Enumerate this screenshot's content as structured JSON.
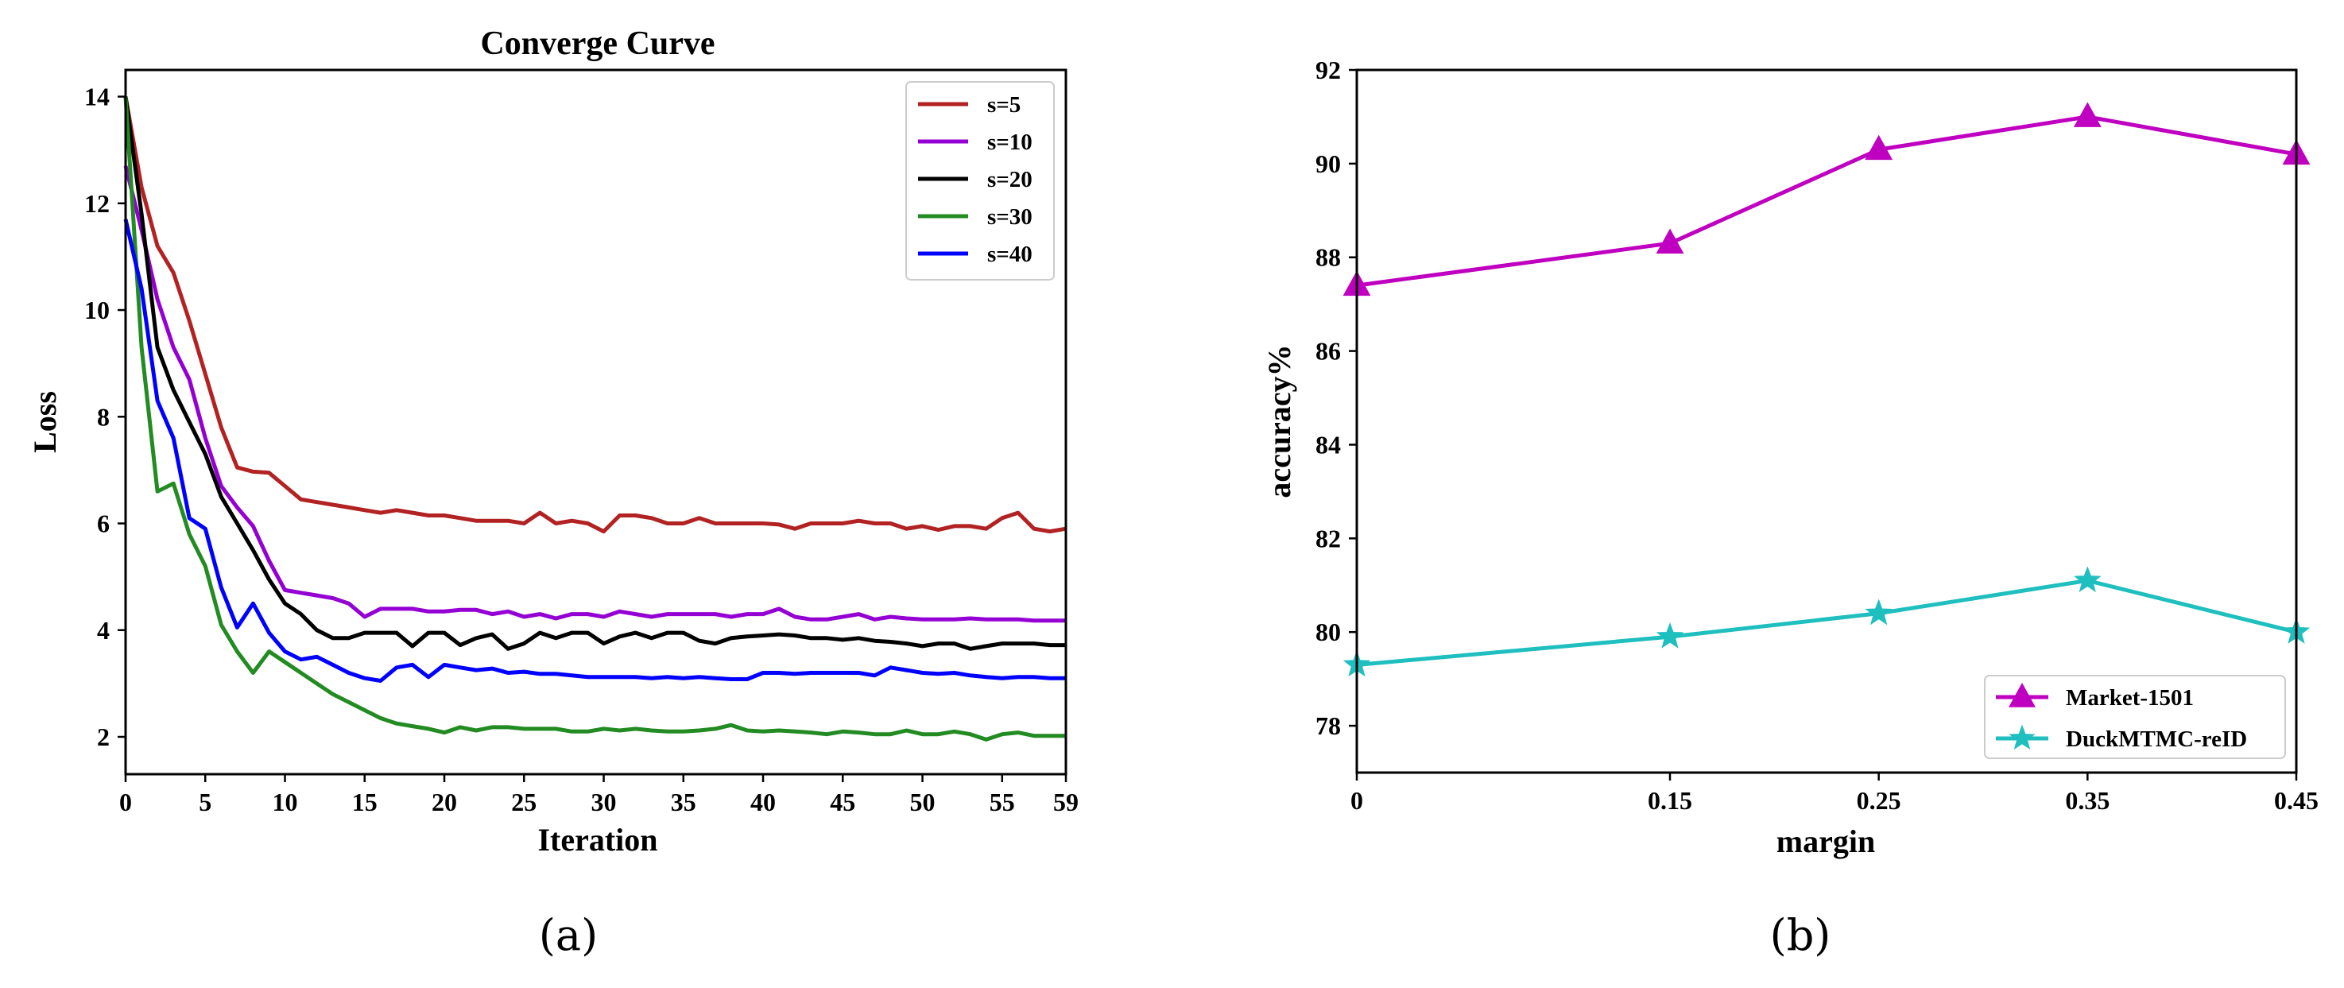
{
  "chart_data": [
    {
      "type": "line",
      "title": "Converge Curve",
      "xlabel": "Iteration",
      "ylabel": "Loss",
      "caption": "(a)",
      "xlim": [
        0,
        59
      ],
      "ylim": [
        1.3,
        14.5
      ],
      "xticks": [
        0,
        5,
        10,
        15,
        20,
        25,
        30,
        35,
        40,
        45,
        50,
        55,
        59
      ],
      "yticks": [
        2,
        4,
        6,
        8,
        10,
        12,
        14
      ],
      "legend_position": "top-right",
      "series": [
        {
          "name": "s=5",
          "color": "#b22222",
          "values": [
            14.0,
            12.3,
            11.2,
            10.7,
            9.8,
            8.8,
            7.8,
            7.05,
            6.97,
            6.95,
            6.7,
            6.45,
            6.4,
            6.35,
            6.3,
            6.25,
            6.2,
            6.25,
            6.2,
            6.15,
            6.15,
            6.1,
            6.05,
            6.05,
            6.05,
            6.0,
            6.2,
            6.0,
            6.05,
            6.0,
            5.85,
            6.15,
            6.15,
            6.1,
            6.0,
            6.0,
            6.1,
            6.0,
            6.0,
            6.0,
            6.0,
            5.98,
            5.9,
            6.0,
            6.0,
            6.0,
            6.05,
            6.0,
            6.0,
            5.9,
            5.95,
            5.88,
            5.95,
            5.95,
            5.9,
            6.1,
            6.2,
            5.9,
            5.85,
            5.9
          ]
        },
        {
          "name": "s=10",
          "color": "#9400d3",
          "values": [
            12.7,
            11.5,
            10.2,
            9.3,
            8.7,
            7.6,
            6.7,
            6.3,
            5.95,
            5.3,
            4.75,
            4.7,
            4.65,
            4.6,
            4.5,
            4.25,
            4.4,
            4.4,
            4.4,
            4.35,
            4.35,
            4.38,
            4.38,
            4.3,
            4.35,
            4.25,
            4.3,
            4.22,
            4.3,
            4.3,
            4.25,
            4.35,
            4.3,
            4.25,
            4.3,
            4.3,
            4.3,
            4.3,
            4.25,
            4.3,
            4.3,
            4.4,
            4.25,
            4.2,
            4.2,
            4.25,
            4.3,
            4.2,
            4.25,
            4.22,
            4.2,
            4.2,
            4.2,
            4.22,
            4.2,
            4.2,
            4.2,
            4.18,
            4.18,
            4.18
          ]
        },
        {
          "name": "s=20",
          "color": "#000000",
          "values": [
            14.0,
            11.8,
            9.3,
            8.5,
            7.9,
            7.3,
            6.5,
            6.0,
            5.5,
            4.95,
            4.5,
            4.3,
            4.0,
            3.85,
            3.85,
            3.95,
            3.95,
            3.95,
            3.7,
            3.95,
            3.95,
            3.72,
            3.85,
            3.92,
            3.65,
            3.75,
            3.95,
            3.85,
            3.95,
            3.95,
            3.75,
            3.88,
            3.95,
            3.85,
            3.95,
            3.95,
            3.8,
            3.75,
            3.85,
            3.88,
            3.9,
            3.92,
            3.9,
            3.85,
            3.85,
            3.82,
            3.85,
            3.8,
            3.78,
            3.75,
            3.7,
            3.75,
            3.75,
            3.65,
            3.7,
            3.75,
            3.75,
            3.75,
            3.72,
            3.72
          ]
        },
        {
          "name": "s=30",
          "color": "#228b22",
          "values": [
            14.0,
            9.3,
            6.6,
            6.75,
            5.8,
            5.2,
            4.1,
            3.6,
            3.2,
            3.6,
            3.4,
            3.2,
            3.0,
            2.8,
            2.65,
            2.5,
            2.35,
            2.25,
            2.2,
            2.15,
            2.08,
            2.18,
            2.12,
            2.18,
            2.18,
            2.15,
            2.15,
            2.15,
            2.1,
            2.1,
            2.15,
            2.12,
            2.15,
            2.12,
            2.1,
            2.1,
            2.12,
            2.15,
            2.22,
            2.12,
            2.1,
            2.12,
            2.1,
            2.08,
            2.05,
            2.1,
            2.08,
            2.05,
            2.05,
            2.12,
            2.05,
            2.05,
            2.1,
            2.05,
            1.95,
            2.05,
            2.08,
            2.02,
            2.02,
            2.02
          ]
        },
        {
          "name": "s=40",
          "color": "#0000ff",
          "values": [
            11.7,
            10.4,
            8.3,
            7.6,
            6.1,
            5.9,
            4.8,
            4.05,
            4.5,
            3.95,
            3.6,
            3.45,
            3.5,
            3.35,
            3.2,
            3.1,
            3.05,
            3.3,
            3.35,
            3.12,
            3.35,
            3.3,
            3.25,
            3.28,
            3.2,
            3.22,
            3.18,
            3.18,
            3.15,
            3.12,
            3.12,
            3.12,
            3.12,
            3.1,
            3.12,
            3.1,
            3.12,
            3.1,
            3.08,
            3.08,
            3.2,
            3.2,
            3.18,
            3.2,
            3.2,
            3.2,
            3.2,
            3.15,
            3.3,
            3.25,
            3.2,
            3.18,
            3.2,
            3.15,
            3.12,
            3.1,
            3.12,
            3.12,
            3.1,
            3.1
          ]
        }
      ]
    },
    {
      "type": "line",
      "title": "",
      "xlabel": "margin",
      "ylabel": "accuracy%",
      "caption": "(b)",
      "categories": [
        "0",
        "0.15",
        "0.25",
        "0.35",
        "0.45"
      ],
      "ylim": [
        77,
        92
      ],
      "yticks": [
        78,
        80,
        82,
        84,
        86,
        88,
        90,
        92
      ],
      "legend_position": "bottom-right",
      "series": [
        {
          "name": "Market-1501",
          "color": "#c000c0",
          "marker": "triangle",
          "values": [
            87.4,
            88.3,
            90.3,
            91.0,
            90.2
          ]
        },
        {
          "name": "DuckMTMC-reID",
          "color": "#1fbfbf",
          "marker": "star",
          "values": [
            79.3,
            79.9,
            80.4,
            81.1,
            80.0
          ]
        }
      ]
    }
  ]
}
